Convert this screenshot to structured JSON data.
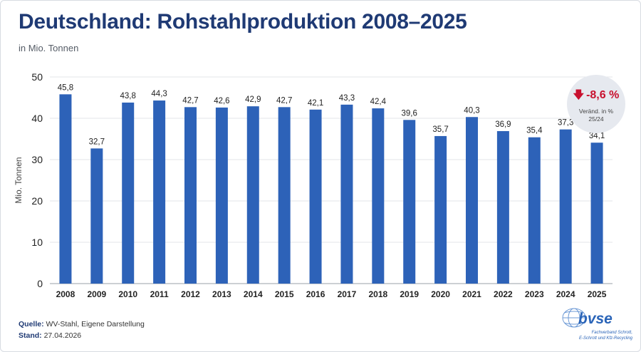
{
  "title": "Deutschland: Rohstahlproduktion 2008–2025",
  "subtitle": "in Mio. Tonnen",
  "footer": {
    "source_label": "Quelle:",
    "source_value": "WV-Stahl, Eigene Darstellung",
    "date_label": "Stand:",
    "date_value": "27.04.2026"
  },
  "badge": {
    "value": "-8,6 %",
    "label_line1": "Veränd. in %",
    "label_line2": "25/24",
    "color": "#c8102e"
  },
  "logo": {
    "name": "bvse",
    "line1": "Fachverband Schrott,",
    "line2": "E-Schrott und Kfz-Recycling"
  },
  "colors": {
    "bar": "#2d62b8",
    "title": "#1f3a74"
  },
  "chart_data": {
    "type": "bar",
    "title": "Deutschland: Rohstahlproduktion 2008–2025",
    "ylabel": "Mio. Tonnen",
    "xlabel": "",
    "ylim": [
      0,
      50
    ],
    "yticks": [
      0,
      10,
      20,
      30,
      40,
      50
    ],
    "grid": true,
    "categories": [
      "2008",
      "2009",
      "2010",
      "2011",
      "2012",
      "2013",
      "2014",
      "2015",
      "2016",
      "2017",
      "2018",
      "2019",
      "2020",
      "2021",
      "2022",
      "2023",
      "2024",
      "2025"
    ],
    "values": [
      45.8,
      32.7,
      43.8,
      44.3,
      42.7,
      42.6,
      42.9,
      42.7,
      42.1,
      43.3,
      42.4,
      39.6,
      35.7,
      40.3,
      36.9,
      35.4,
      37.3,
      34.1
    ],
    "value_labels": [
      "45,8",
      "32,7",
      "43,8",
      "44,3",
      "42,7",
      "42,6",
      "42,9",
      "42,7",
      "42,1",
      "43,3",
      "42,4",
      "39,6",
      "35,7",
      "40,3",
      "36,9",
      "35,4",
      "37,3",
      "34,1"
    ]
  }
}
